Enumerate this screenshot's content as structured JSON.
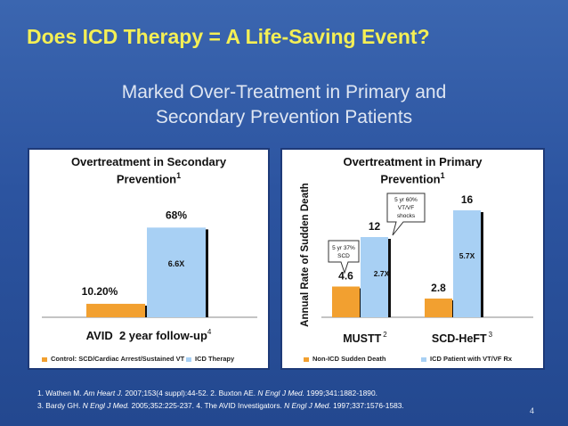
{
  "slide": {
    "title": "Does ICD Therapy = A Life-Saving Event?",
    "subtitle_line1": "Marked Over-Treatment in Primary and",
    "subtitle_line2": "Secondary Prevention Patients",
    "references_line1_parts": [
      "1. Wathen M. ",
      "Am Heart J.",
      " 2007;153(4 suppl):44-52.  2. Buxton AE. ",
      "N Engl J Med.",
      " 1999;341:1882-1890."
    ],
    "references_line2_parts": [
      "3. Bardy GH. ",
      "N Engl J Med.",
      " 2005;352:225-237.  4. The AVID Investigators. ",
      "N Engl J Med.",
      " 1997;337:1576-1583."
    ],
    "page_number": "4"
  },
  "colors": {
    "title": "#f4ef55",
    "background": "#2c54a0",
    "orange_bar": "#f2a030",
    "blue_bar": "#a8d0f4",
    "bar_shadow": "#111111"
  },
  "chart_data": [
    {
      "type": "bar",
      "title": "Overtreatment in Secondary Prevention",
      "title_line1": "Overtreatment in Secondary",
      "title_line2": "Prevention",
      "title_sup": "1",
      "categories": [
        "AVID  2 year follow-up"
      ],
      "category_sups": [
        "4"
      ],
      "series": [
        {
          "name": "Control: SCD/Cardiac Arrest/Sustained VT",
          "values": [
            10.2
          ],
          "labels": [
            "10.20%"
          ],
          "color": "#f2a030"
        },
        {
          "name": "ICD Therapy",
          "values": [
            68
          ],
          "labels": [
            "68%"
          ],
          "color": "#a8d0f4"
        }
      ],
      "ratio_labels": [
        "6.6X"
      ],
      "ylim": [
        0,
        100
      ],
      "grid": false,
      "legend": "bottom"
    },
    {
      "type": "bar",
      "title": "Overtreatment in Primary Prevention",
      "title_line1": "Overtreatment in Primary",
      "title_line2": "Prevention",
      "title_sup": "1",
      "ylabel": "Annual Rate of Sudden Death",
      "categories": [
        "MUSTT",
        "SCD-HeFT"
      ],
      "category_sups": [
        "2",
        "3"
      ],
      "series": [
        {
          "name": "Non-ICD Sudden Death",
          "values": [
            4.6,
            2.8
          ],
          "labels": [
            "4.6",
            "2.8"
          ],
          "color": "#f2a030"
        },
        {
          "name": "ICD Patient with VT/VF Rx",
          "values": [
            12,
            16
          ],
          "labels": [
            "12",
            "16"
          ],
          "color": "#a8d0f4"
        }
      ],
      "ratio_labels": [
        "2.7X",
        "5.7X"
      ],
      "callouts": [
        {
          "lines": [
            "5 yr 37%",
            "SCD"
          ],
          "points_to": "MUSTT Non-ICD Sudden Death"
        },
        {
          "lines": [
            "5 yr 60%",
            "VT/VF",
            "shocks"
          ],
          "points_to": "MUSTT ICD Patient with VT/VF Rx"
        }
      ],
      "ylim": [
        0,
        20
      ],
      "grid": false,
      "legend": "bottom"
    }
  ]
}
